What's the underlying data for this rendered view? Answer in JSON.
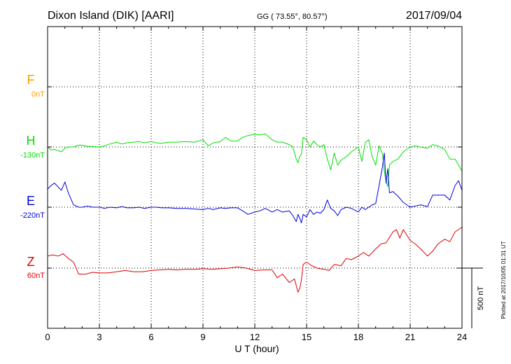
{
  "header": {
    "station": "Dixon Island (DIK)  [AARI]",
    "coords": "GG ( 73.55°,  80.57°)",
    "date": "2017/09/04"
  },
  "footer": {
    "plotted": "Plotted at 2017/10/05 01:31  UT"
  },
  "chart_data": {
    "type": "line",
    "xlabel": "U T (hour)",
    "xlim": [
      0,
      24
    ],
    "xticks": [
      "0",
      "3",
      "6",
      "9",
      "12",
      "15",
      "18",
      "21",
      "24"
    ],
    "grid": true,
    "scale_bar_label": "500 nT",
    "colors": {
      "F": "#ff9900",
      "H": "#00e000",
      "E": "#0000dd",
      "Z": "#dd0000"
    },
    "series": [
      {
        "name": "F",
        "baseline_label": "0nT",
        "x": [],
        "y": []
      },
      {
        "name": "H",
        "baseline_label": "-130nT",
        "x": [
          0,
          0.2,
          0.4,
          0.6,
          0.8,
          1.0,
          1.2,
          1.5,
          1.8,
          2.0,
          2.3,
          2.6,
          3.0,
          3.3,
          3.6,
          4.0,
          4.3,
          4.6,
          5.0,
          5.3,
          5.6,
          6.0,
          6.3,
          6.6,
          7.0,
          7.5,
          8.0,
          8.5,
          9.0,
          9.3,
          9.6,
          10.0,
          10.3,
          10.6,
          11.0,
          11.3,
          11.6,
          12.0,
          12.3,
          12.6,
          13.0,
          13.3,
          13.6,
          14.0,
          14.2,
          14.4,
          14.5,
          14.6,
          14.7,
          14.8,
          15.0,
          15.2,
          15.4,
          15.6,
          15.8,
          16.0,
          16.2,
          16.4,
          16.6,
          16.8,
          17.0,
          17.3,
          17.6,
          18.0,
          18.2,
          18.4,
          18.6,
          18.8,
          19.0,
          19.2,
          19.4,
          19.5,
          19.6,
          19.7,
          19.8,
          20.0,
          20.3,
          20.6,
          21.0,
          21.3,
          21.6,
          22.0,
          22.3,
          22.6,
          23.0,
          23.3,
          23.6,
          23.8,
          24.0
        ],
        "y": [
          0,
          -25,
          -20,
          -30,
          -40,
          -10,
          0,
          0,
          15,
          15,
          5,
          5,
          0,
          10,
          25,
          40,
          25,
          35,
          40,
          45,
          35,
          45,
          35,
          30,
          40,
          40,
          45,
          40,
          60,
          10,
          35,
          45,
          80,
          50,
          50,
          80,
          95,
          105,
          100,
          110,
          60,
          40,
          40,
          20,
          0,
          -100,
          -130,
          -80,
          -60,
          80,
          60,
          0,
          50,
          20,
          0,
          20,
          -100,
          -190,
          -50,
          -150,
          -110,
          -80,
          -40,
          0,
          -120,
          40,
          60,
          -80,
          -150,
          10,
          -60,
          -200,
          -280,
          -330,
          -150,
          -120,
          -100,
          -40,
          0,
          10,
          0,
          -10,
          20,
          10,
          -20,
          -100,
          -100,
          -150,
          -200
        ]
      },
      {
        "name": "E",
        "baseline_label": "-220nT",
        "x": [
          0,
          0.2,
          0.4,
          0.6,
          0.8,
          1.0,
          1.2,
          1.5,
          1.8,
          2.0,
          2.3,
          2.6,
          3.0,
          3.3,
          3.6,
          4.0,
          4.3,
          4.6,
          5.0,
          5.3,
          5.6,
          6.0,
          6.3,
          6.6,
          7.0,
          7.5,
          8.0,
          8.5,
          9.0,
          9.3,
          9.6,
          10.0,
          10.3,
          10.6,
          11.0,
          11.3,
          11.6,
          12.0,
          12.3,
          12.6,
          13.0,
          13.3,
          13.6,
          14.0,
          14.2,
          14.4,
          14.5,
          14.6,
          14.7,
          14.8,
          15.0,
          15.2,
          15.4,
          15.6,
          15.8,
          16.0,
          16.2,
          16.4,
          16.6,
          16.8,
          17.0,
          17.3,
          17.6,
          18.0,
          18.2,
          18.4,
          18.6,
          18.8,
          19.0,
          19.2,
          19.4,
          19.5,
          19.6,
          19.7,
          19.8,
          20.0,
          20.3,
          20.6,
          21.0,
          21.3,
          21.6,
          22.0,
          22.3,
          22.6,
          23.0,
          23.3,
          23.6,
          23.8,
          24.0
        ],
        "y": [
          150,
          180,
          200,
          170,
          140,
          210,
          120,
          20,
          0,
          0,
          10,
          0,
          0,
          -10,
          0,
          -5,
          5,
          -5,
          -5,
          0,
          -10,
          0,
          0,
          -5,
          -5,
          -10,
          -10,
          -15,
          -20,
          -10,
          -20,
          -5,
          -10,
          -5,
          -5,
          -30,
          -60,
          -40,
          -30,
          -10,
          -40,
          -20,
          -40,
          -30,
          -70,
          -120,
          -60,
          -90,
          -130,
          -60,
          -80,
          -20,
          -60,
          -40,
          -50,
          -20,
          60,
          -10,
          -30,
          -70,
          -20,
          0,
          -10,
          -40,
          0,
          -20,
          0,
          20,
          30,
          180,
          340,
          450,
          200,
          320,
          120,
          130,
          90,
          40,
          0,
          10,
          20,
          5,
          100,
          100,
          100,
          60,
          180,
          220,
          140
        ]
      },
      {
        "name": "Z",
        "baseline_label": "60nT",
        "x": [
          0,
          0.3,
          0.6,
          0.9,
          1.2,
          1.5,
          1.8,
          2.2,
          2.6,
          3.0,
          3.5,
          4.0,
          4.5,
          5.0,
          5.5,
          6.0,
          6.5,
          7.0,
          7.5,
          8.0,
          8.5,
          9.0,
          9.5,
          10.0,
          10.5,
          11.0,
          11.5,
          12.0,
          12.5,
          13.0,
          13.3,
          13.6,
          14.0,
          14.3,
          14.5,
          14.6,
          14.7,
          14.8,
          15.0,
          15.3,
          15.6,
          16.0,
          16.3,
          16.6,
          17.0,
          17.3,
          17.6,
          18.0,
          18.3,
          18.6,
          19.0,
          19.3,
          19.6,
          20.0,
          20.2,
          20.4,
          20.6,
          21.0,
          21.3,
          21.6,
          22.0,
          22.3,
          22.6,
          23.0,
          23.3,
          23.6,
          24.0
        ],
        "y": [
          100,
          110,
          100,
          120,
          80,
          50,
          -50,
          -50,
          -35,
          -40,
          -40,
          -30,
          -20,
          -30,
          -30,
          -20,
          -15,
          -10,
          -15,
          -10,
          -10,
          -5,
          -10,
          -5,
          0,
          10,
          0,
          -20,
          -15,
          -15,
          -80,
          -50,
          -120,
          -90,
          -200,
          -170,
          -100,
          30,
          50,
          20,
          0,
          -10,
          -20,
          30,
          20,
          80,
          70,
          100,
          130,
          100,
          160,
          200,
          210,
          300,
          320,
          250,
          320,
          230,
          200,
          160,
          100,
          140,
          200,
          240,
          220,
          300,
          340
        ]
      }
    ]
  }
}
